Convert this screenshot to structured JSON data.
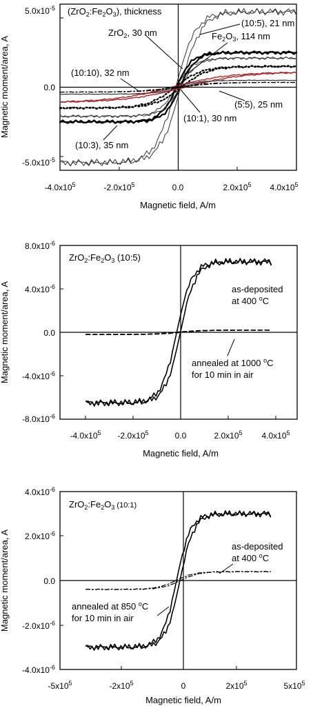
{
  "chart_data": [
    {
      "type": "line",
      "title": "(ZrO2:Fe2O3), thickness",
      "xlabel": "Magnetic field, A/m",
      "ylabel": "Magnetic moment/area, A",
      "xlim": [
        -400000,
        400000
      ],
      "ylim": [
        -6e-05,
        6e-05
      ],
      "xticks": [
        -400000,
        -200000,
        0,
        200000,
        400000
      ],
      "xtick_labels": [
        "-4.0x10^5",
        "-2.0x10^5",
        "0.0",
        "2.0x10^5",
        "4.0x10^5"
      ],
      "yticks": [
        -5e-05,
        0,
        5e-05
      ],
      "ytick_labels": [
        "-5.0x10^-5",
        "0.0",
        "5.0x10^-5"
      ],
      "grid": false,
      "series": [
        {
          "name": "(10:5), 21 nm",
          "ms": 5.45e-05,
          "hs": 70000,
          "style": "thin",
          "color": "#333333"
        },
        {
          "name": "Fe2O3, 114 nm",
          "ms": 2.5e-05,
          "hs": 55000,
          "style": "thick",
          "color": "#000000"
        },
        {
          "name": "ZrO2, 30 nm",
          "ms": 2.1e-05,
          "hs": 60000,
          "style": "thin",
          "color": "#333333"
        },
        {
          "name": "(10:1), 30 nm",
          "ms": 1.5e-05,
          "hs": 90000,
          "style": "dotted",
          "color": "#000000"
        },
        {
          "name": "(10:10), 32 nm",
          "ms": 5e-06,
          "hs": 80000,
          "style": "thin",
          "color": "#333333"
        },
        {
          "name": "(5:5), 25 nm",
          "ms": 1.1e-05,
          "hs": 200000,
          "style": "red",
          "color": "#b22222"
        },
        {
          "name": "(10:3), 35 nm",
          "ms": 3.5e-06,
          "hs": 120000,
          "style": "dashdot",
          "color": "#000000"
        }
      ],
      "annotations": [
        "(10:5), 21 nm",
        "ZrO2, 30 nm",
        "Fe2O3, 114 nm",
        "(10:10), 32 nm",
        "(5:5), 25 nm",
        "(10:1), 30 nm",
        "(10:3), 35 nm"
      ]
    },
    {
      "type": "line",
      "title": "ZrO2:Fe2O3 (10:5)",
      "xlabel": "Magnetic field, A/m",
      "ylabel": "Magnetic moment/area, A",
      "xlim": [
        -500000,
        500000
      ],
      "ylim": [
        -8e-06,
        8e-06
      ],
      "xticks": [
        -400000,
        -200000,
        0,
        200000,
        400000
      ],
      "xtick_labels": [
        "-4.0x10^5",
        "-2.0x10^5",
        "0.0",
        "2.0x10^5",
        "4.0x10^5"
      ],
      "yticks": [
        -8e-06,
        -4e-06,
        0,
        4e-06,
        8e-06
      ],
      "ytick_labels": [
        "-8.0x10^-6",
        "-4.0x10^-6",
        "0.0",
        "4.0x10^-6",
        "8.0x10^-6"
      ],
      "grid": false,
      "series": [
        {
          "name": "as-deposited at 400 oC",
          "ms": 6.5e-06,
          "hs": 65000,
          "xrange": [
            -390000,
            390000
          ],
          "style": "solid"
        },
        {
          "name": "annealed at 1000 oC for 10 min in air",
          "ms": 2e-07,
          "hs": 100000,
          "xrange": [
            -390000,
            390000
          ],
          "style": "dashed"
        }
      ],
      "annotations": [
        "as-deposited at 400 oC",
        "annealed at 1000 oC for 10 min in air"
      ]
    },
    {
      "type": "line",
      "title": "ZrO2:Fe2O3 (10:1)",
      "xlabel": "Magnetic field, A/m",
      "ylabel": "Magnetic moment/area, A",
      "xlim": [
        -500000,
        500000
      ],
      "ylim": [
        -4e-06,
        4e-06
      ],
      "xticks": [
        -500000,
        -200000,
        0,
        200000,
        500000
      ],
      "xtick_labels": [
        "-5x10^5",
        "-2x10^5",
        "0",
        "2x10^5",
        "5x10^5"
      ],
      "yticks": [
        -4e-06,
        -2e-06,
        0,
        2e-06,
        4e-06
      ],
      "ytick_labels": [
        "-4.0x10^-6",
        "-2.0x10^-6",
        "0.0",
        "2.0x10^-6",
        "4.0x10^-6"
      ],
      "grid": false,
      "series": [
        {
          "name": "annealed at 850 oC for 10 min in air",
          "ms": 3e-06,
          "hs": 60000,
          "xrange": [
            -390000,
            390000
          ],
          "style": "solid"
        },
        {
          "name": "as-deposited at 400 oC",
          "ms": 4e-07,
          "hs": 80000,
          "xrange": [
            -390000,
            390000
          ],
          "style": "dashdot"
        }
      ],
      "annotations": [
        "as-deposited at 400 oC",
        "annealed at 850 oC for 10 min in air"
      ]
    }
  ]
}
